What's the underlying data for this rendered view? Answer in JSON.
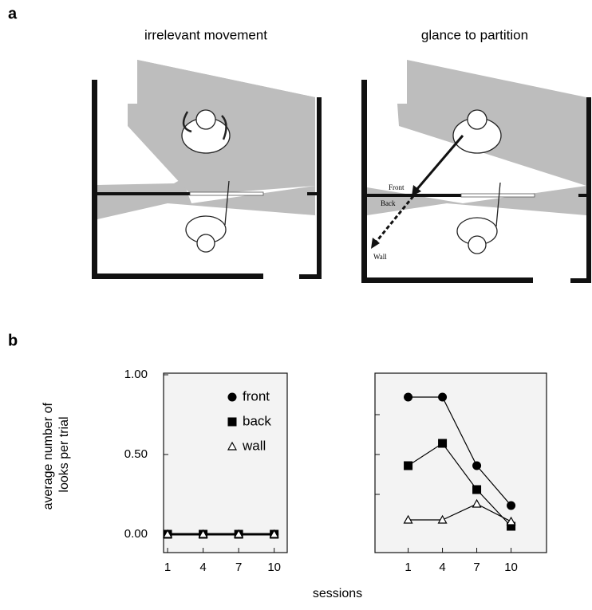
{
  "panel_labels": [
    "a",
    "b"
  ],
  "illustrations": [
    {
      "title": "irrelevant movement"
    },
    {
      "title": "glance to partition",
      "annotations": [
        "Front",
        "Back",
        "Wall"
      ]
    }
  ],
  "xlabel": "sessions",
  "ylabel_lines": [
    "average number of",
    "looks per trial"
  ],
  "chart_data": [
    {
      "type": "line",
      "x": [
        1,
        4,
        7,
        10
      ],
      "xlim": [
        0.66,
        11.1
      ],
      "ylim": [
        -0.115,
        1.01
      ],
      "xticks": [
        1,
        4,
        7,
        10
      ],
      "yticks": [
        {
          "value": 0,
          "label": "0.00"
        },
        {
          "value": 0.5,
          "label": "0.50"
        },
        {
          "value": 1,
          "label": "1.00"
        }
      ],
      "tick_labels": true,
      "legend": "upper right",
      "line_width": 3,
      "series": [
        {
          "name": "front",
          "color": "#000000",
          "marker": "circle",
          "values": [
            0,
            0,
            0,
            0
          ]
        },
        {
          "name": "back",
          "color": "#000000",
          "marker": "square",
          "values": [
            0,
            0,
            0,
            0
          ]
        },
        {
          "name": "wall",
          "color": "#000000",
          "marker": "triangle-open",
          "values": [
            0,
            0,
            0,
            0
          ]
        }
      ]
    },
    {
      "type": "line",
      "x": [
        1,
        4,
        7,
        10
      ],
      "xlim": [
        -1.9,
        13.1
      ],
      "ylim": [
        -0.115,
        1.01
      ],
      "xticks": [
        1,
        4,
        7,
        10
      ],
      "yticks": [
        0.25,
        0.5,
        0.75
      ],
      "tick_labels": false,
      "line_width": 1.2,
      "series": [
        {
          "name": "front",
          "color": "#000000",
          "marker": "circle",
          "values": [
            0.86,
            0.86,
            0.43,
            0.18
          ]
        },
        {
          "name": "back",
          "color": "#000000",
          "marker": "square",
          "values": [
            0.43,
            0.57,
            0.28,
            0.05
          ]
        },
        {
          "name": "wall",
          "color": "#000000",
          "marker": "triangle-open",
          "values": [
            0.09,
            0.09,
            0.19,
            0.08
          ]
        }
      ]
    }
  ]
}
